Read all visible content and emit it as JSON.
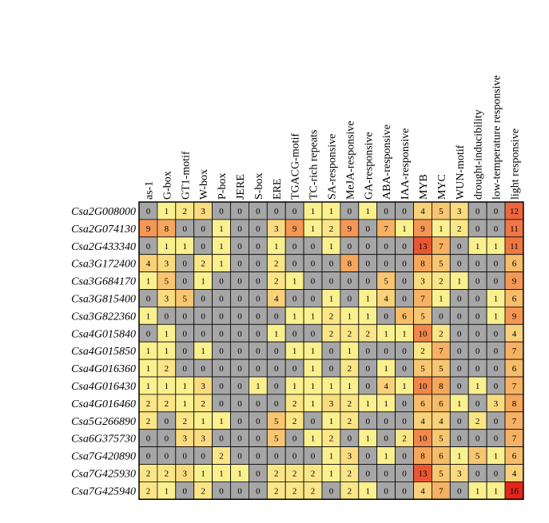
{
  "chart_data": {
    "type": "heatmap",
    "columns": [
      "as-1",
      "G-box",
      "GT1-motif",
      "W-box",
      "P-box",
      "JERE",
      "S-box",
      "ERE",
      "TGACG-motif",
      "TC-rich repeats",
      "SA-responsive",
      "MeJA-responsive",
      "GA-responsive",
      "ABA-responsive",
      "IAA-responsive",
      "MYB",
      "MYC",
      "WUN-motif",
      "drought-inducibility",
      "low-temperature responsive",
      "light responsive"
    ],
    "rows": [
      "Csa2G008000",
      "Csa2G074130",
      "Csa2G433340",
      "Csa3G172400",
      "Csa3G684170",
      "Csa3G815400",
      "Csa3G822360",
      "Csa4G015840",
      "Csa4G015850",
      "Csa4G016360",
      "Csa4G016430",
      "Csa4G016460",
      "Csa5G266890",
      "Csa6G375730",
      "Csa7G420890",
      "Csa7G425930",
      "Csa7G425940"
    ],
    "values": [
      [
        0,
        1,
        2,
        3,
        0,
        0,
        0,
        0,
        0,
        1,
        1,
        0,
        1,
        0,
        0,
        4,
        5,
        3,
        0,
        0,
        12
      ],
      [
        9,
        8,
        0,
        0,
        1,
        0,
        0,
        3,
        9,
        1,
        2,
        9,
        0,
        7,
        1,
        9,
        1,
        2,
        0,
        0,
        11
      ],
      [
        0,
        1,
        1,
        0,
        1,
        0,
        0,
        1,
        0,
        0,
        1,
        0,
        0,
        0,
        0,
        13,
        7,
        0,
        1,
        1,
        11
      ],
      [
        4,
        3,
        0,
        2,
        1,
        0,
        0,
        2,
        0,
        0,
        0,
        8,
        0,
        0,
        0,
        8,
        5,
        0,
        0,
        0,
        6
      ],
      [
        1,
        5,
        0,
        1,
        0,
        0,
        0,
        2,
        1,
        0,
        0,
        0,
        0,
        5,
        0,
        3,
        2,
        1,
        0,
        0,
        9
      ],
      [
        0,
        3,
        5,
        0,
        0,
        0,
        0,
        4,
        0,
        0,
        1,
        0,
        1,
        4,
        0,
        7,
        1,
        0,
        0,
        1,
        6
      ],
      [
        1,
        0,
        0,
        0,
        0,
        0,
        0,
        0,
        1,
        1,
        2,
        1,
        1,
        0,
        6,
        5,
        0,
        0,
        0,
        1,
        9
      ],
      [
        0,
        1,
        0,
        0,
        0,
        0,
        0,
        1,
        0,
        0,
        2,
        2,
        2,
        1,
        1,
        10,
        2,
        0,
        0,
        0,
        4
      ],
      [
        1,
        1,
        0,
        1,
        0,
        0,
        0,
        0,
        1,
        1,
        0,
        1,
        0,
        0,
        0,
        2,
        7,
        0,
        0,
        0,
        7
      ],
      [
        1,
        2,
        0,
        0,
        0,
        0,
        0,
        0,
        0,
        1,
        0,
        2,
        0,
        1,
        0,
        5,
        5,
        0,
        0,
        0,
        6
      ],
      [
        1,
        1,
        1,
        3,
        0,
        0,
        1,
        0,
        1,
        1,
        1,
        1,
        0,
        4,
        1,
        10,
        8,
        0,
        1,
        0,
        7
      ],
      [
        2,
        2,
        1,
        2,
        0,
        0,
        0,
        0,
        2,
        1,
        3,
        2,
        1,
        1,
        0,
        6,
        6,
        1,
        0,
        3,
        8
      ],
      [
        2,
        0,
        2,
        1,
        1,
        0,
        0,
        5,
        2,
        0,
        1,
        2,
        0,
        0,
        0,
        4,
        4,
        0,
        2,
        0,
        7
      ],
      [
        0,
        0,
        3,
        3,
        0,
        0,
        0,
        5,
        0,
        1,
        2,
        0,
        1,
        0,
        2,
        10,
        5,
        0,
        0,
        0,
        7
      ],
      [
        0,
        0,
        0,
        0,
        2,
        0,
        0,
        0,
        0,
        0,
        1,
        3,
        0,
        1,
        0,
        8,
        6,
        1,
        5,
        1,
        6
      ],
      [
        2,
        2,
        3,
        1,
        1,
        1,
        0,
        2,
        2,
        2,
        1,
        2,
        0,
        0,
        0,
        13,
        5,
        3,
        0,
        0,
        4
      ],
      [
        2,
        1,
        0,
        2,
        0,
        0,
        0,
        2,
        2,
        2,
        0,
        2,
        1,
        0,
        0,
        4,
        7,
        0,
        1,
        1,
        16
      ]
    ],
    "colors": {
      "zero": "#a6a6a6",
      "low": "#fbf08e",
      "mid": "#f6a75c",
      "high": "#e3261c",
      "grid": "#000000",
      "text": "#000000"
    }
  }
}
